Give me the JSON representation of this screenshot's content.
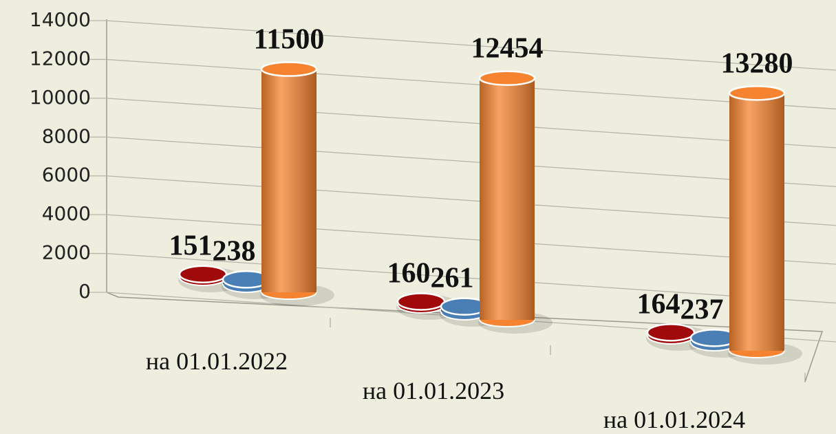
{
  "chart_data": {
    "type": "bar",
    "categories": [
      "на 01.01.2022",
      "на 01.01.2023",
      "на 01.01.2024"
    ],
    "series": [
      {
        "color": "#a10a0a",
        "values": [
          151,
          160,
          164
        ]
      },
      {
        "color": "#4a7fb5",
        "values": [
          238,
          261,
          237
        ]
      },
      {
        "color": "#f5832f",
        "values": [
          11500,
          12454,
          13280
        ]
      }
    ],
    "ylim": [
      0,
      14000
    ],
    "yticks": [
      0,
      2000,
      4000,
      6000,
      8000,
      10000,
      12000,
      14000
    ],
    "grid": true
  }
}
